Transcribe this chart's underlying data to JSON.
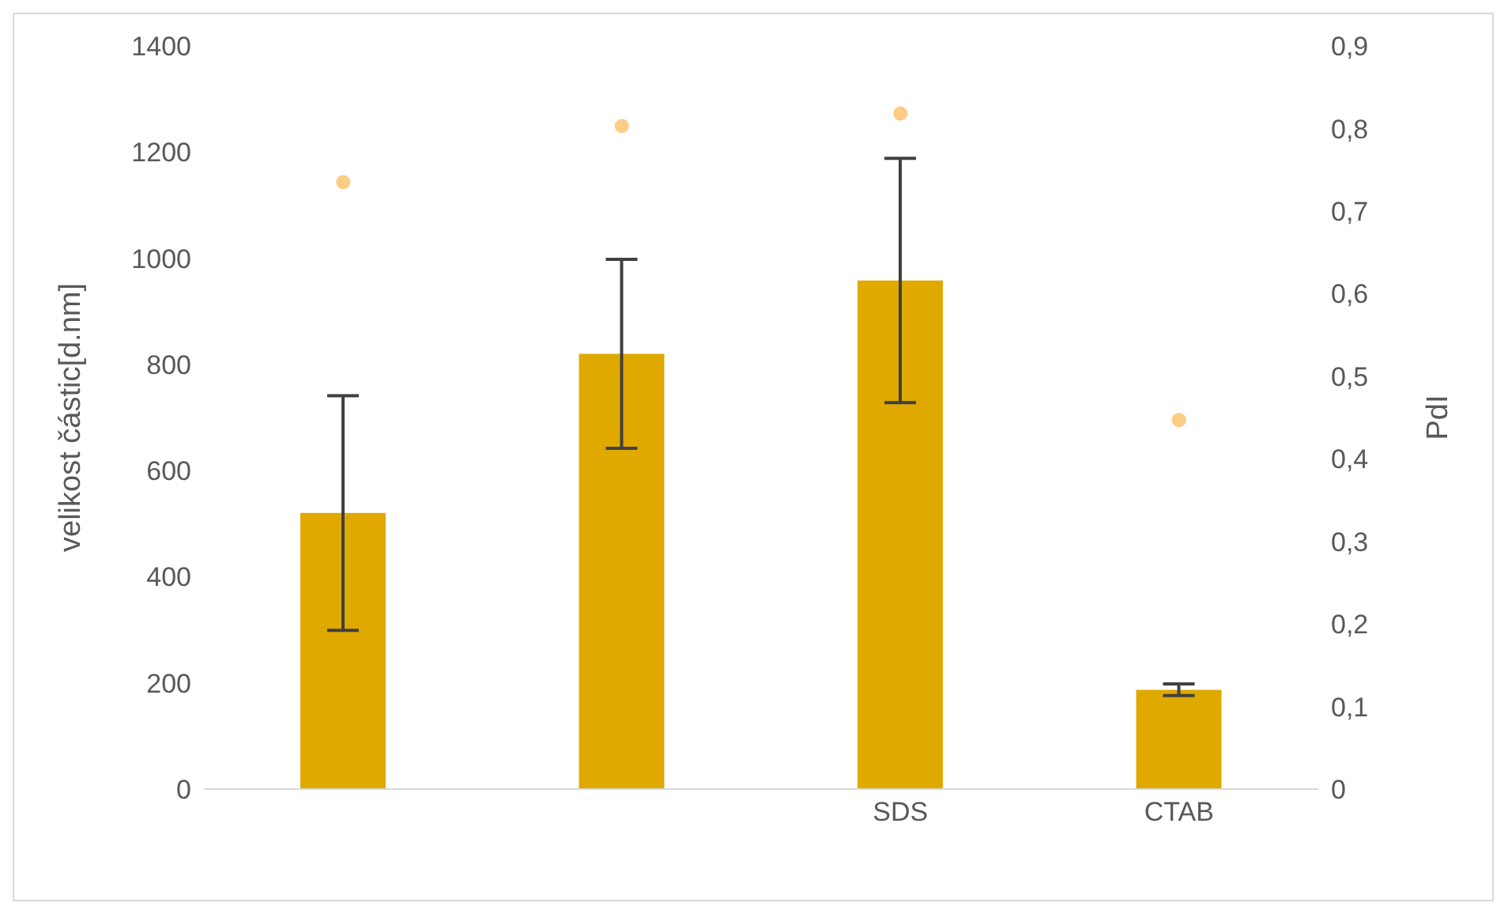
{
  "chart_data": {
    "type": "bar",
    "ylabel": "velikost částic[d.nm]",
    "y2label": "PdI",
    "categories": [
      null,
      null,
      "SDS",
      "CTAB"
    ],
    "series": [
      {
        "color": "#dfa900",
        "values": [
          520,
          820,
          958,
          187
        ],
        "errors": [
          221,
          178,
          230,
          11
        ]
      },
      {
        "type": "scatter",
        "axis": "y2",
        "color": "#fdcd85",
        "values": [
          0.735,
          0.803,
          0.818,
          0.447
        ],
        "marker": "circle"
      }
    ],
    "ylim": [
      0,
      1400
    ],
    "yticks": [
      0,
      200,
      400,
      600,
      800,
      1000,
      1200,
      1400
    ],
    "y2lim": [
      0,
      0.9
    ],
    "y2ticks": [
      0,
      {
        "value": 0.1,
        "label": "0,1"
      },
      {
        "value": 0.2,
        "label": "0,2"
      },
      {
        "value": 0.3,
        "label": "0,3"
      },
      {
        "value": 0.4,
        "label": "0,4"
      },
      {
        "value": 0.5,
        "label": "0,5"
      },
      {
        "value": 0.6,
        "label": "0,6"
      },
      {
        "value": 0.7,
        "label": "0,7"
      },
      {
        "value": 0.8,
        "label": "0,8"
      },
      {
        "value": 0.9,
        "label": "0,9"
      }
    ],
    "grid": false,
    "legend": false
  }
}
